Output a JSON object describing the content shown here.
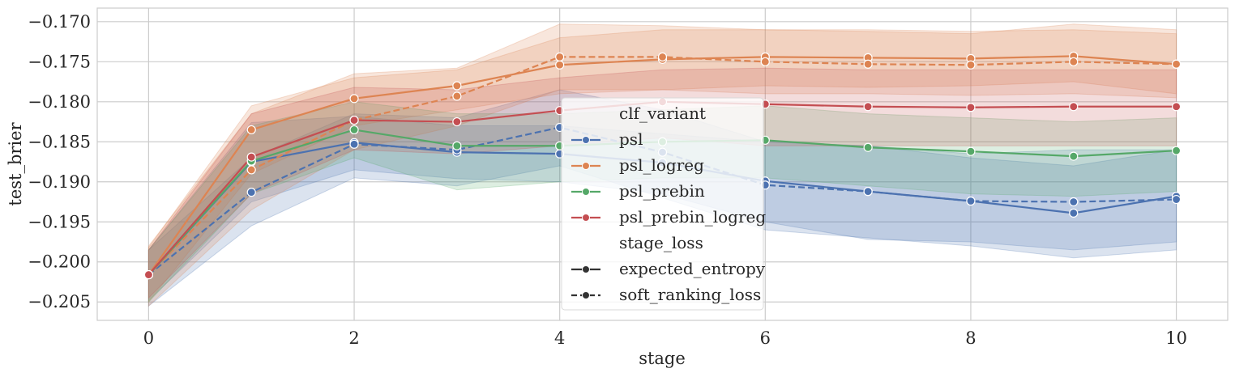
{
  "chart_data": {
    "type": "line",
    "xlabel": "stage",
    "ylabel": "test_brier",
    "xlim": [
      -0.5,
      10.5
    ],
    "ylim": [
      -0.2073,
      -0.1683
    ],
    "xticks": [
      0,
      2,
      4,
      6,
      8,
      10
    ],
    "xtick_labels": [
      "0",
      "2",
      "4",
      "6",
      "8",
      "10"
    ],
    "yticks": [
      -0.17,
      -0.175,
      -0.18,
      -0.185,
      -0.19,
      -0.195,
      -0.2,
      -0.205
    ],
    "ytick_labels": [
      "−0.170",
      "−0.175",
      "−0.180",
      "−0.185",
      "−0.190",
      "−0.195",
      "−0.200",
      "−0.205"
    ],
    "grid": true,
    "legend_position": "center",
    "legend": {
      "hue_title": "clf_variant",
      "style_title": "stage_loss",
      "hue_entries": [
        "psl",
        "psl_logreg",
        "psl_prebin",
        "psl_prebin_logreg"
      ],
      "style_entries": [
        "expected_entropy",
        "soft_ranking_loss"
      ]
    },
    "colors": {
      "psl": "#4c72b0",
      "psl_logreg": "#dd8452",
      "psl_prebin": "#55a868",
      "psl_prebin_logreg": "#c44e52"
    },
    "x": [
      0,
      1,
      2,
      3,
      4,
      5,
      6,
      7,
      8,
      9,
      10
    ],
    "series": [
      {
        "name": "psl",
        "variant": "psl",
        "style": "solid",
        "values": [
          -0.2016,
          -0.1875,
          -0.1851,
          -0.1863,
          -0.1865,
          -0.1876,
          -0.1899,
          -0.1912,
          -0.1924,
          -0.1939,
          -0.1918
        ],
        "ci": [
          [
            -0.2048,
            -0.1985
          ],
          [
            -0.1925,
            -0.1826
          ],
          [
            -0.1885,
            -0.1818
          ],
          [
            -0.1896,
            -0.183
          ],
          [
            -0.19,
            -0.183
          ],
          [
            -0.1915,
            -0.184
          ],
          [
            -0.195,
            -0.185
          ],
          [
            -0.1972,
            -0.1855
          ],
          [
            -0.1975,
            -0.187
          ],
          [
            -0.1985,
            -0.188
          ],
          [
            -0.1975,
            -0.186
          ]
        ]
      },
      {
        "name": "psl",
        "variant": "psl",
        "style": "dashed",
        "values": [
          -0.2016,
          -0.1913,
          -0.1853,
          -0.186,
          -0.1832,
          -0.1863,
          -0.1904,
          -0.1912,
          -0.1924,
          -0.1925,
          -0.1922
        ],
        "ci": [
          [
            -0.2055,
            -0.1985
          ],
          [
            -0.1955,
            -0.187
          ],
          [
            -0.1895,
            -0.1815
          ],
          [
            -0.1905,
            -0.182
          ],
          [
            -0.188,
            -0.1785
          ],
          [
            -0.192,
            -0.181
          ],
          [
            -0.196,
            -0.185
          ],
          [
            -0.197,
            -0.1855
          ],
          [
            -0.198,
            -0.1865
          ],
          [
            -0.1995,
            -0.186
          ],
          [
            -0.1985,
            -0.186
          ]
        ]
      },
      {
        "name": "psl_logreg",
        "variant": "psl_logreg",
        "style": "solid",
        "values": [
          -0.2016,
          -0.1835,
          -0.1796,
          -0.178,
          -0.1754,
          -0.1747,
          -0.1744,
          -0.1745,
          -0.1746,
          -0.1743,
          -0.1753
        ],
        "ci": [
          [
            -0.205,
            -0.1982
          ],
          [
            -0.189,
            -0.1805
          ],
          [
            -0.183,
            -0.177
          ],
          [
            -0.181,
            -0.176
          ],
          [
            -0.179,
            -0.172
          ],
          [
            -0.1785,
            -0.171
          ],
          [
            -0.178,
            -0.171
          ],
          [
            -0.1782,
            -0.171
          ],
          [
            -0.178,
            -0.1712
          ],
          [
            -0.1775,
            -0.171
          ],
          [
            -0.179,
            -0.1715
          ]
        ]
      },
      {
        "name": "psl_logreg",
        "variant": "psl_logreg",
        "style": "dashed",
        "values": [
          -0.2016,
          -0.1885,
          -0.1823,
          -0.1793,
          -0.1744,
          -0.1744,
          -0.175,
          -0.1753,
          -0.1754,
          -0.175,
          -0.1753
        ],
        "ci": [
          [
            -0.2055,
            -0.198
          ],
          [
            -0.1935,
            -0.1815
          ],
          [
            -0.186,
            -0.1765
          ],
          [
            -0.183,
            -0.1758
          ],
          [
            -0.1785,
            -0.1703
          ],
          [
            -0.1785,
            -0.1705
          ],
          [
            -0.179,
            -0.171
          ],
          [
            -0.179,
            -0.1712
          ],
          [
            -0.1792,
            -0.1715
          ],
          [
            -0.179,
            -0.1703
          ],
          [
            -0.1795,
            -0.171
          ]
        ]
      },
      {
        "name": "psl_prebin",
        "variant": "psl_prebin",
        "style": "solid",
        "values": [
          -0.2016,
          -0.1874,
          -0.1835,
          -0.1855,
          -0.1855,
          -0.185,
          -0.1848,
          -0.1857,
          -0.1862,
          -0.1868,
          -0.1861
        ],
        "ci": [
          [
            -0.205,
            -0.1985
          ],
          [
            -0.1915,
            -0.183
          ],
          [
            -0.187,
            -0.18
          ],
          [
            -0.191,
            -0.1815
          ],
          [
            -0.19,
            -0.1815
          ],
          [
            -0.1895,
            -0.181
          ],
          [
            -0.1895,
            -0.1805
          ],
          [
            -0.1905,
            -0.1815
          ],
          [
            -0.1915,
            -0.182
          ],
          [
            -0.1918,
            -0.1825
          ],
          [
            -0.1912,
            -0.182
          ]
        ]
      },
      {
        "name": "psl_prebin_logreg",
        "variant": "psl_prebin_logreg",
        "style": "solid",
        "values": [
          -0.2016,
          -0.1869,
          -0.1823,
          -0.1825,
          -0.1811,
          -0.18,
          -0.1803,
          -0.1806,
          -0.1807,
          -0.1806,
          -0.1806
        ],
        "ci": [
          [
            -0.2045,
            -0.1985
          ],
          [
            -0.1915,
            -0.1815
          ],
          [
            -0.186,
            -0.1782
          ],
          [
            -0.1865,
            -0.1785
          ],
          [
            -0.1855,
            -0.177
          ],
          [
            -0.1845,
            -0.176
          ],
          [
            -0.1855,
            -0.1758
          ],
          [
            -0.1855,
            -0.176
          ],
          [
            -0.1855,
            -0.176
          ],
          [
            -0.1855,
            -0.176
          ],
          [
            -0.1855,
            -0.176
          ]
        ]
      }
    ]
  }
}
